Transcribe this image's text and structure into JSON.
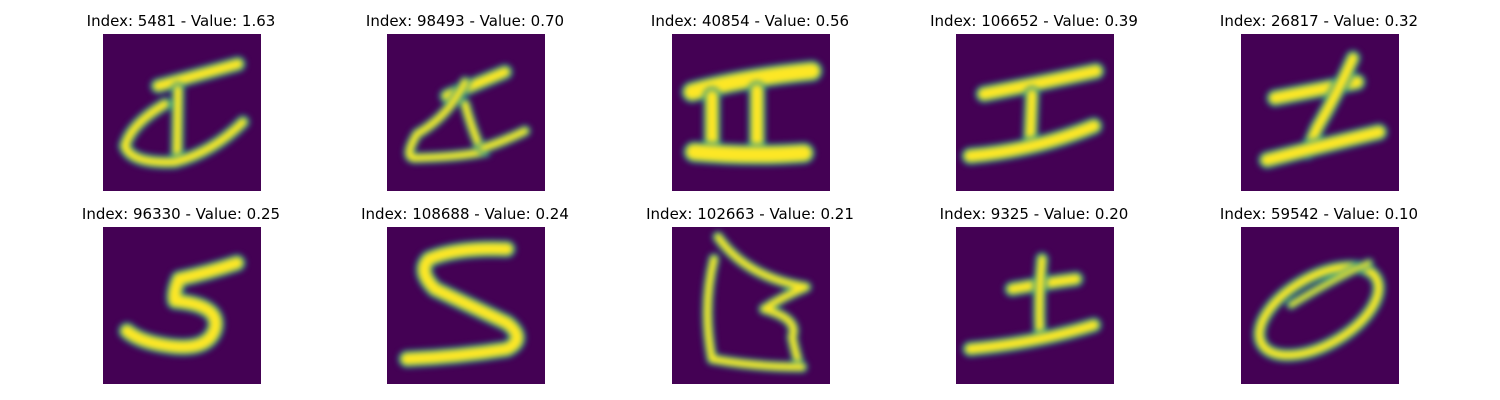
{
  "figure": {
    "panels": [
      {
        "title": "Index: 5481 - Value: 1.63",
        "glyph": "glyph-a",
        "index": 5481,
        "value": 1.63
      },
      {
        "title": "Index: 98493 - Value: 0.70",
        "glyph": "glyph-b",
        "index": 98493,
        "value": 0.7
      },
      {
        "title": "Index: 40854 - Value: 0.56",
        "glyph": "glyph-c",
        "index": 40854,
        "value": 0.56
      },
      {
        "title": "Index: 106652 - Value: 0.39",
        "glyph": "glyph-d",
        "index": 106652,
        "value": 0.39
      },
      {
        "title": "Index: 26817 - Value: 0.32",
        "glyph": "glyph-e",
        "index": 26817,
        "value": 0.32
      },
      {
        "title": "Index: 96330 - Value: 0.25",
        "glyph": "glyph-f",
        "index": 96330,
        "value": 0.25
      },
      {
        "title": "Index: 108688 - Value: 0.24",
        "glyph": "glyph-g",
        "index": 108688,
        "value": 0.24
      },
      {
        "title": "Index: 102663 - Value: 0.21",
        "glyph": "glyph-h",
        "index": 102663,
        "value": 0.21
      },
      {
        "title": "Index: 9325 - Value: 0.20",
        "glyph": "glyph-i",
        "index": 9325,
        "value": 0.2
      },
      {
        "title": "Index: 59542 - Value: 0.10",
        "glyph": "glyph-j",
        "index": 59542,
        "value": 0.1
      }
    ]
  },
  "colors": {
    "background": "#440154",
    "stroke": "#fde725",
    "edge": "#21918c"
  }
}
